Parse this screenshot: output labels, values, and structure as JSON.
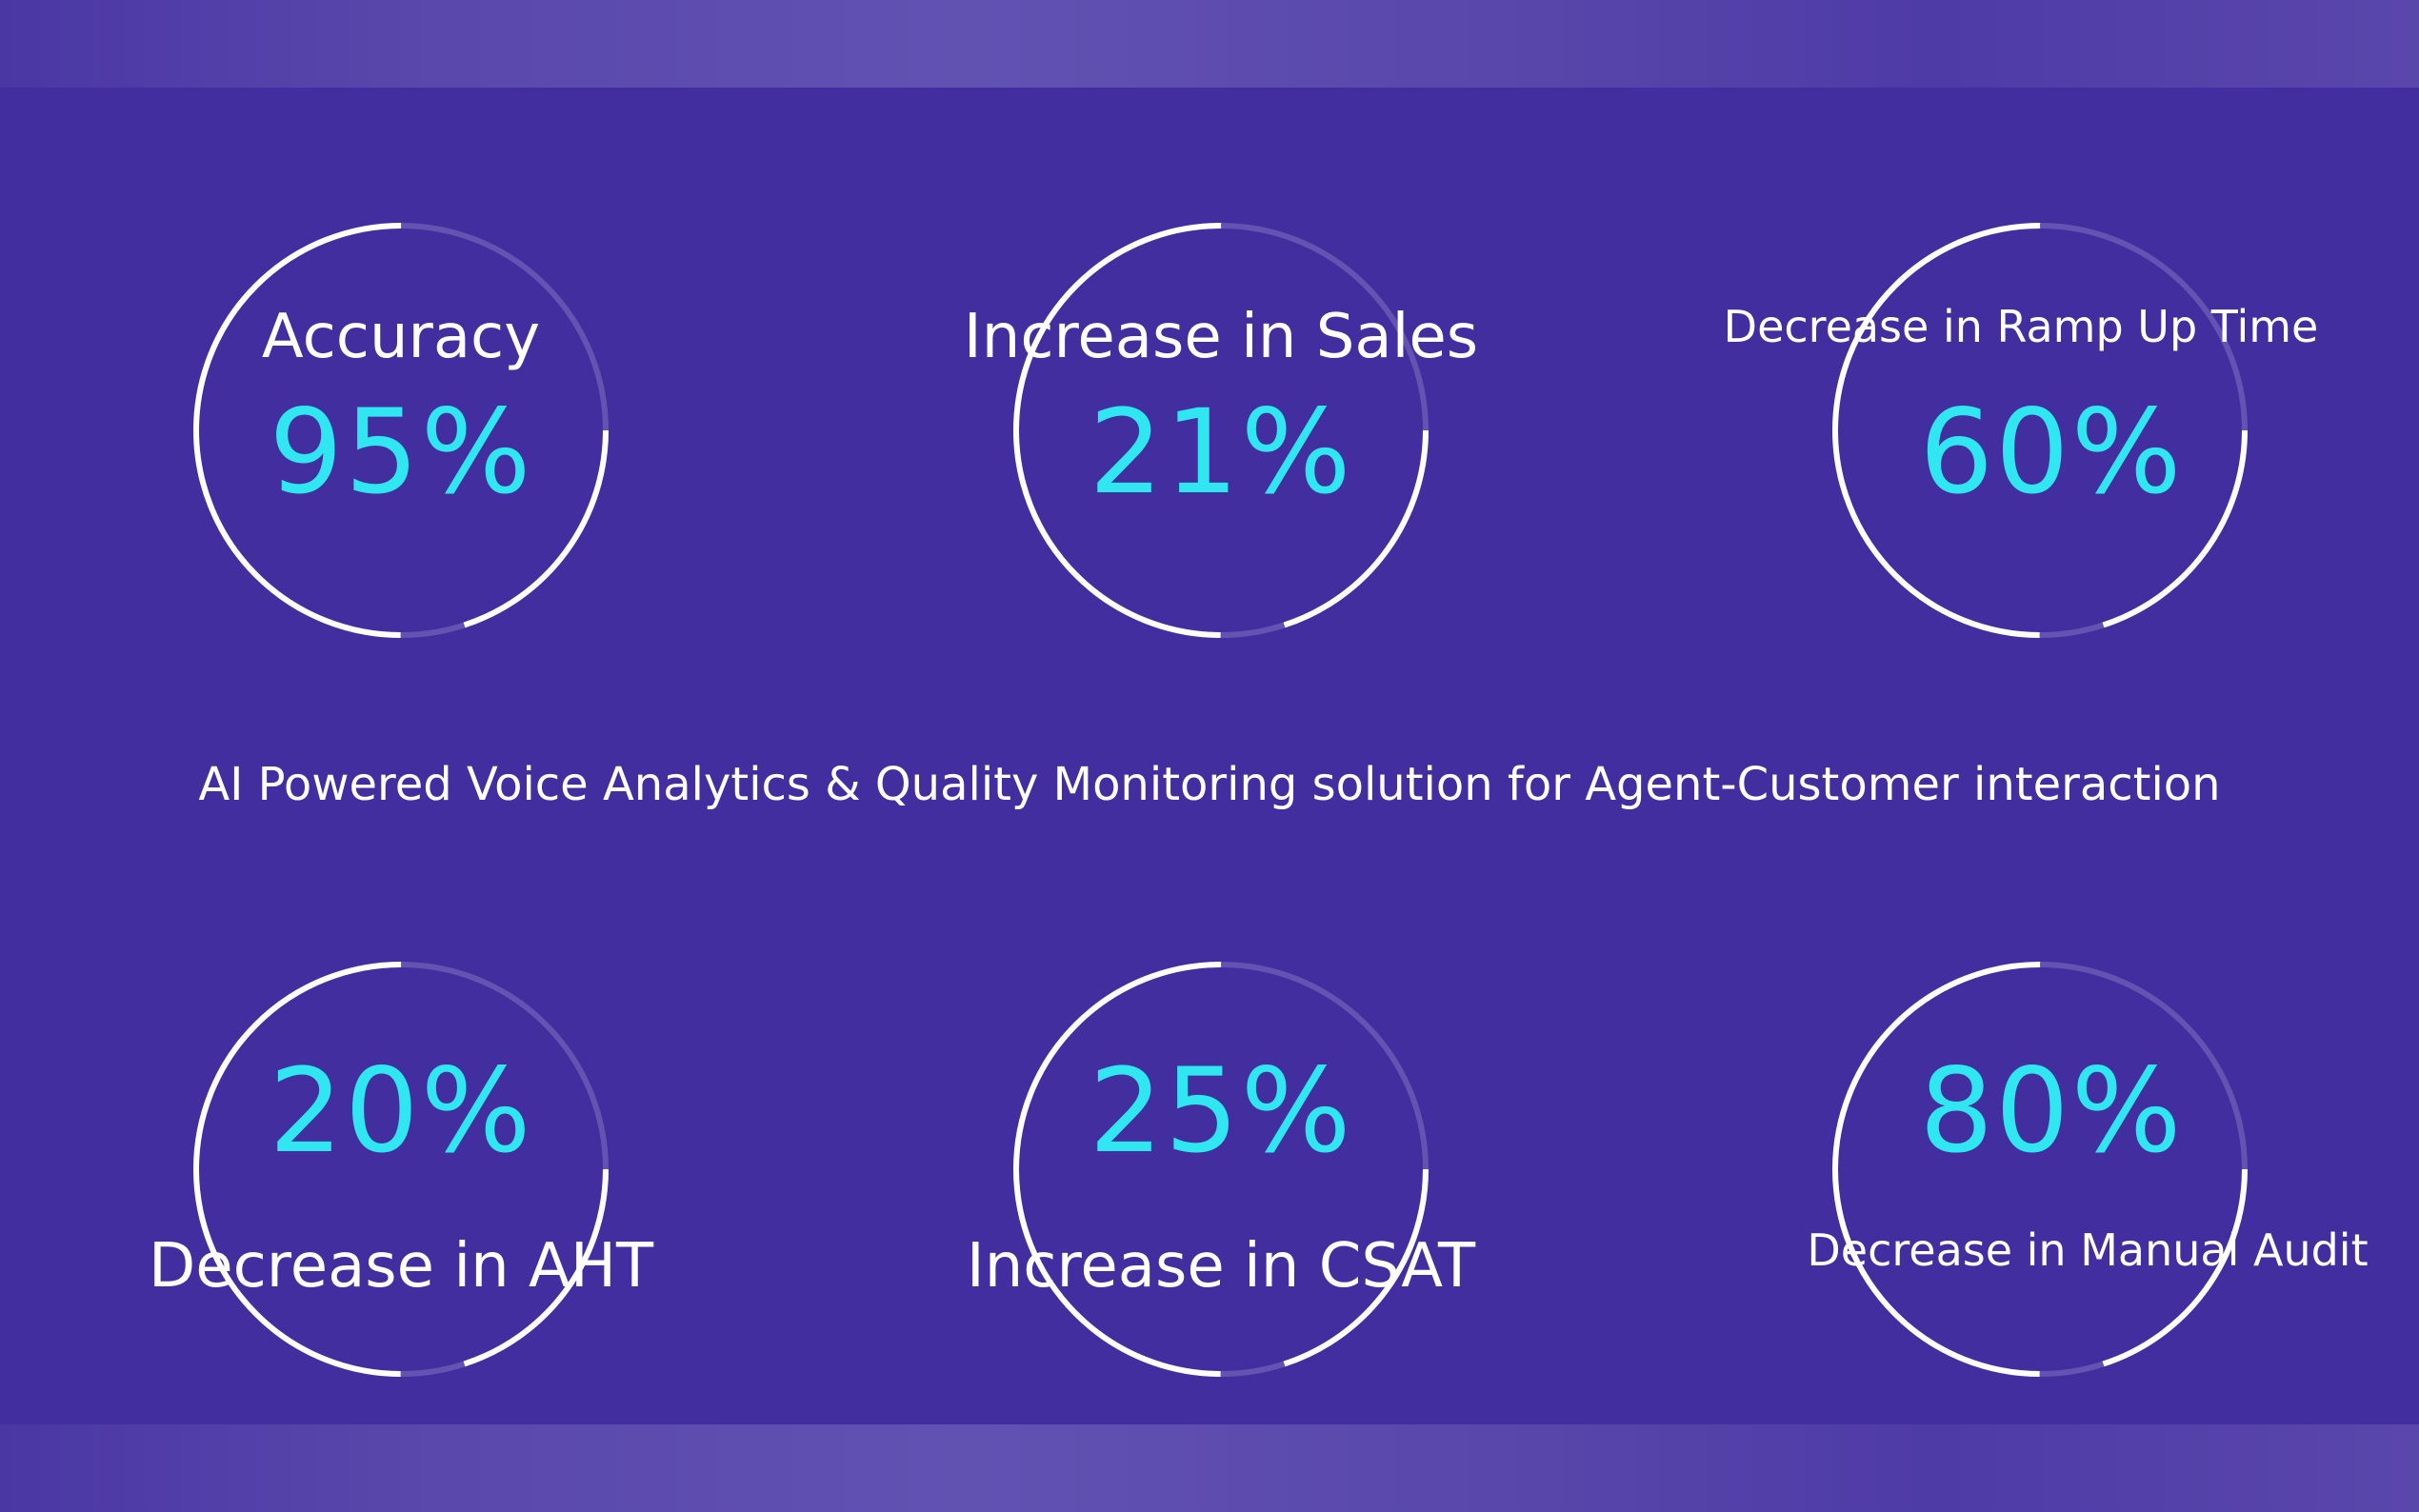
{
  "top_stats": [
    {
      "label": "Accuracy",
      "value": "95%"
    },
    {
      "label": "Increase in Sales",
      "value": "21%"
    },
    {
      "label": "Decrease in Ramp Up Time",
      "value": "60%"
    }
  ],
  "tagline": "AI Powered Voice Analytics & Quality Monitoring solution for Agent-Customer interaction",
  "bottom_stats": [
    {
      "label": "Decrease in AHT",
      "value": "20%"
    },
    {
      "label": "Increase in CSAT",
      "value": "25%"
    },
    {
      "label": "Decrease in Manual Audit",
      "value": "80%"
    }
  ],
  "colors": {
    "background": "#432ea0",
    "value": "#2fe6f1",
    "text": "#ffffff"
  }
}
